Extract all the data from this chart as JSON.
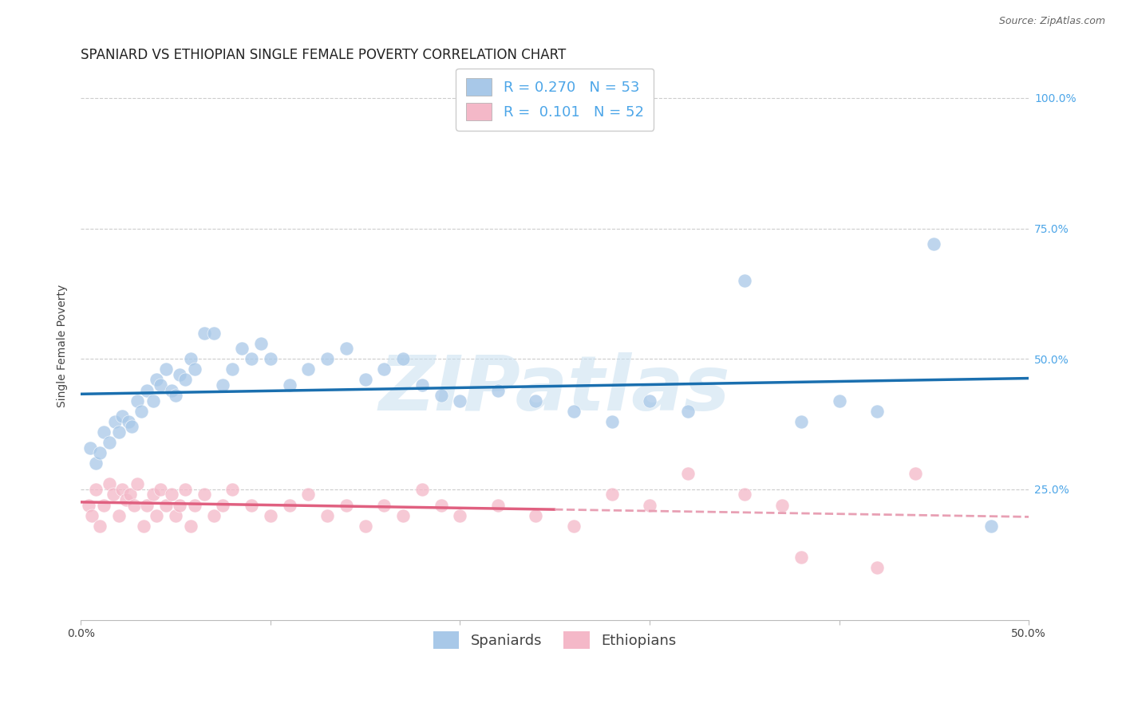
{
  "title": "SPANIARD VS ETHIOPIAN SINGLE FEMALE POVERTY CORRELATION CHART",
  "source": "Source: ZipAtlas.com",
  "ylabel": "Single Female Poverty",
  "xlim": [
    0.0,
    0.5
  ],
  "ylim": [
    0.0,
    1.05
  ],
  "ytick_positions": [
    0.25,
    0.5,
    0.75,
    1.0
  ],
  "ytick_labels": [
    "25.0%",
    "50.0%",
    "75.0%",
    "100.0%"
  ],
  "spaniards_x": [
    0.005,
    0.008,
    0.01,
    0.012,
    0.015,
    0.018,
    0.02,
    0.022,
    0.025,
    0.027,
    0.03,
    0.032,
    0.035,
    0.038,
    0.04,
    0.042,
    0.045,
    0.048,
    0.05,
    0.052,
    0.055,
    0.058,
    0.06,
    0.065,
    0.07,
    0.075,
    0.08,
    0.085,
    0.09,
    0.095,
    0.1,
    0.11,
    0.12,
    0.13,
    0.14,
    0.15,
    0.16,
    0.17,
    0.18,
    0.19,
    0.2,
    0.22,
    0.24,
    0.26,
    0.28,
    0.3,
    0.32,
    0.35,
    0.38,
    0.4,
    0.42,
    0.45,
    0.48
  ],
  "spaniards_y": [
    0.33,
    0.3,
    0.32,
    0.36,
    0.34,
    0.38,
    0.36,
    0.39,
    0.38,
    0.37,
    0.42,
    0.4,
    0.44,
    0.42,
    0.46,
    0.45,
    0.48,
    0.44,
    0.43,
    0.47,
    0.46,
    0.5,
    0.48,
    0.55,
    0.55,
    0.45,
    0.48,
    0.52,
    0.5,
    0.53,
    0.5,
    0.45,
    0.48,
    0.5,
    0.52,
    0.46,
    0.48,
    0.5,
    0.45,
    0.43,
    0.42,
    0.44,
    0.42,
    0.4,
    0.38,
    0.42,
    0.4,
    0.65,
    0.38,
    0.42,
    0.4,
    0.72,
    0.18
  ],
  "ethiopians_x": [
    0.004,
    0.006,
    0.008,
    0.01,
    0.012,
    0.015,
    0.017,
    0.02,
    0.022,
    0.024,
    0.026,
    0.028,
    0.03,
    0.033,
    0.035,
    0.038,
    0.04,
    0.042,
    0.045,
    0.048,
    0.05,
    0.052,
    0.055,
    0.058,
    0.06,
    0.065,
    0.07,
    0.075,
    0.08,
    0.09,
    0.1,
    0.11,
    0.12,
    0.13,
    0.14,
    0.15,
    0.16,
    0.17,
    0.18,
    0.19,
    0.2,
    0.22,
    0.24,
    0.26,
    0.28,
    0.3,
    0.32,
    0.35,
    0.37,
    0.38,
    0.42,
    0.44
  ],
  "ethiopians_y": [
    0.22,
    0.2,
    0.25,
    0.18,
    0.22,
    0.26,
    0.24,
    0.2,
    0.25,
    0.23,
    0.24,
    0.22,
    0.26,
    0.18,
    0.22,
    0.24,
    0.2,
    0.25,
    0.22,
    0.24,
    0.2,
    0.22,
    0.25,
    0.18,
    0.22,
    0.24,
    0.2,
    0.22,
    0.25,
    0.22,
    0.2,
    0.22,
    0.24,
    0.2,
    0.22,
    0.18,
    0.22,
    0.2,
    0.25,
    0.22,
    0.2,
    0.22,
    0.2,
    0.18,
    0.24,
    0.22,
    0.28,
    0.24,
    0.22,
    0.12,
    0.1,
    0.28
  ],
  "blue_scatter_color": "#a8c8e8",
  "pink_scatter_color": "#f4b8c8",
  "blue_line_color": "#1a6faf",
  "pink_solid_color": "#e06080",
  "pink_dashed_color": "#e8a0b4",
  "R_spaniards": "0.270",
  "N_spaniards": 53,
  "R_ethiopians": "0.101",
  "N_ethiopians": 52,
  "watermark_text": "ZIPatlas",
  "title_fontsize": 12,
  "label_fontsize": 10,
  "tick_fontsize": 10,
  "legend_fontsize": 13,
  "source_fontsize": 9
}
